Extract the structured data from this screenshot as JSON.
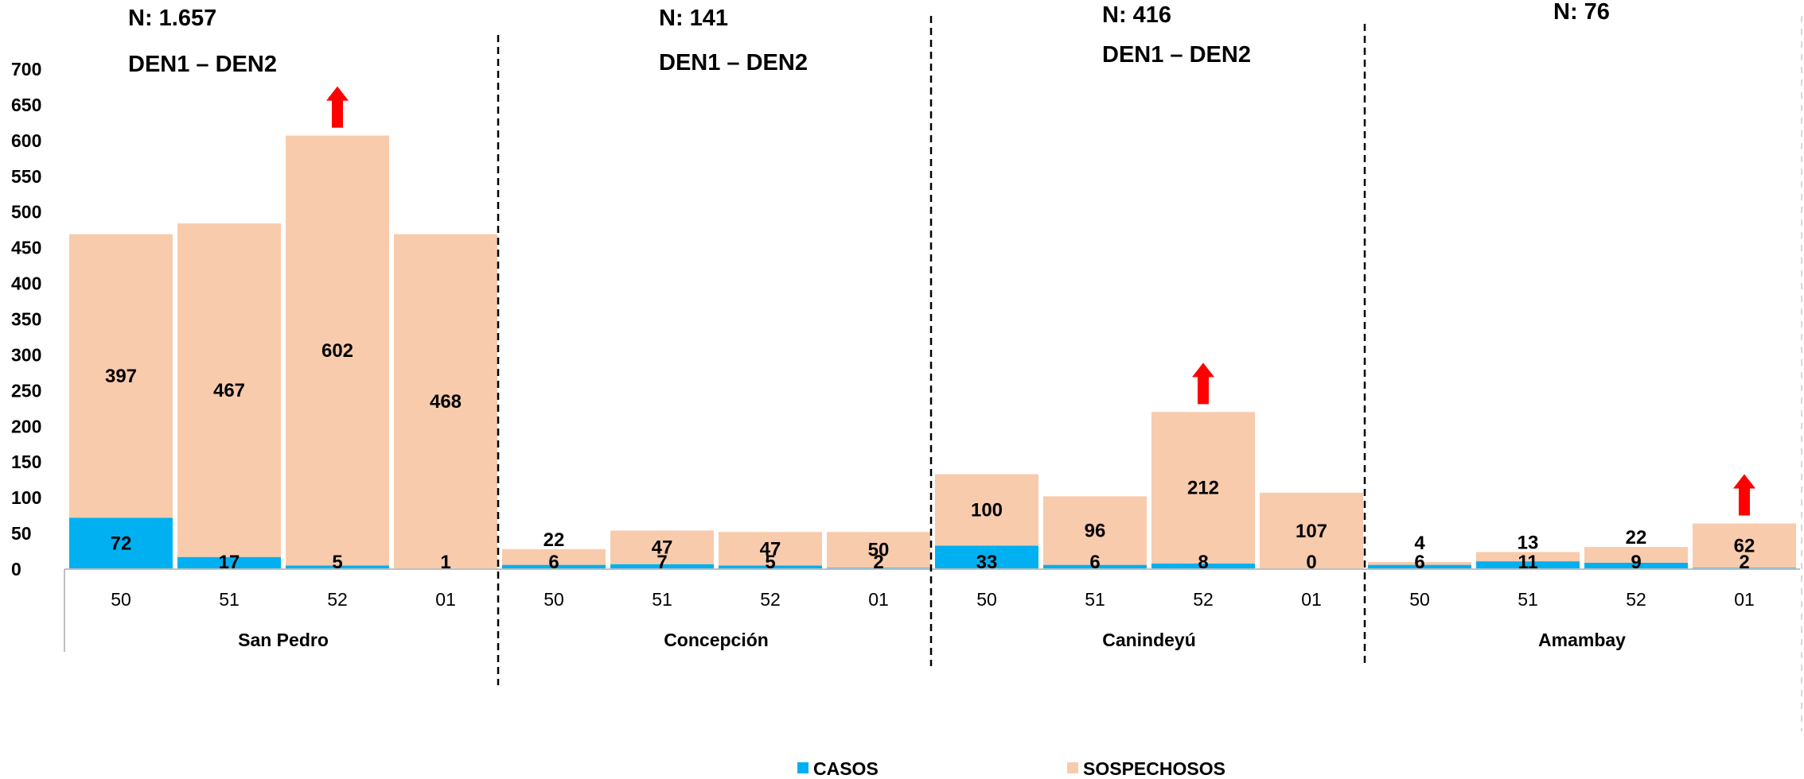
{
  "chart_data": {
    "type": "bar",
    "stacked": true,
    "ylim": [
      0,
      700
    ],
    "yticks": [
      0,
      50,
      100,
      150,
      200,
      250,
      300,
      350,
      400,
      450,
      500,
      550,
      600,
      650,
      700
    ],
    "grid": false,
    "legend_position": "bottom",
    "groups": [
      {
        "name": "San Pedro",
        "annotations": [
          "N: 1.657",
          "DEN1 – DEN2"
        ],
        "weeks": [
          "50",
          "51",
          "52",
          "01"
        ],
        "casos": [
          72,
          17,
          5,
          1
        ],
        "sospechosos": [
          397,
          467,
          602,
          468
        ],
        "arrow_week": "52"
      },
      {
        "name": "Concepción",
        "annotations": [
          "N: 141",
          "DEN1 – DEN2"
        ],
        "weeks": [
          "50",
          "51",
          "52",
          "01"
        ],
        "casos": [
          6,
          7,
          5,
          2
        ],
        "sospechosos": [
          22,
          47,
          47,
          50
        ],
        "arrow_week": null
      },
      {
        "name": "Canindeyú",
        "annotations": [
          "N: 416",
          "DEN1 – DEN2"
        ],
        "weeks": [
          "50",
          "51",
          "52",
          "01"
        ],
        "casos": [
          33,
          6,
          8,
          0
        ],
        "sospechosos": [
          100,
          96,
          212,
          107
        ],
        "arrow_week": "52"
      },
      {
        "name": "Amambay",
        "annotations": [
          "N: 76"
        ],
        "weeks": [
          "50",
          "51",
          "52",
          "01"
        ],
        "casos": [
          6,
          11,
          9,
          2
        ],
        "sospechosos": [
          4,
          13,
          22,
          62
        ],
        "arrow_week": "01"
      }
    ],
    "series": [
      {
        "name": "CASOS",
        "color": "#00b0f0"
      },
      {
        "name": "SOSPECHOSOS",
        "color": "#f8cbad"
      }
    ],
    "arrow_color": "#ff0000",
    "axis_color": "#bfbfbf",
    "separator_color": "#000000"
  }
}
